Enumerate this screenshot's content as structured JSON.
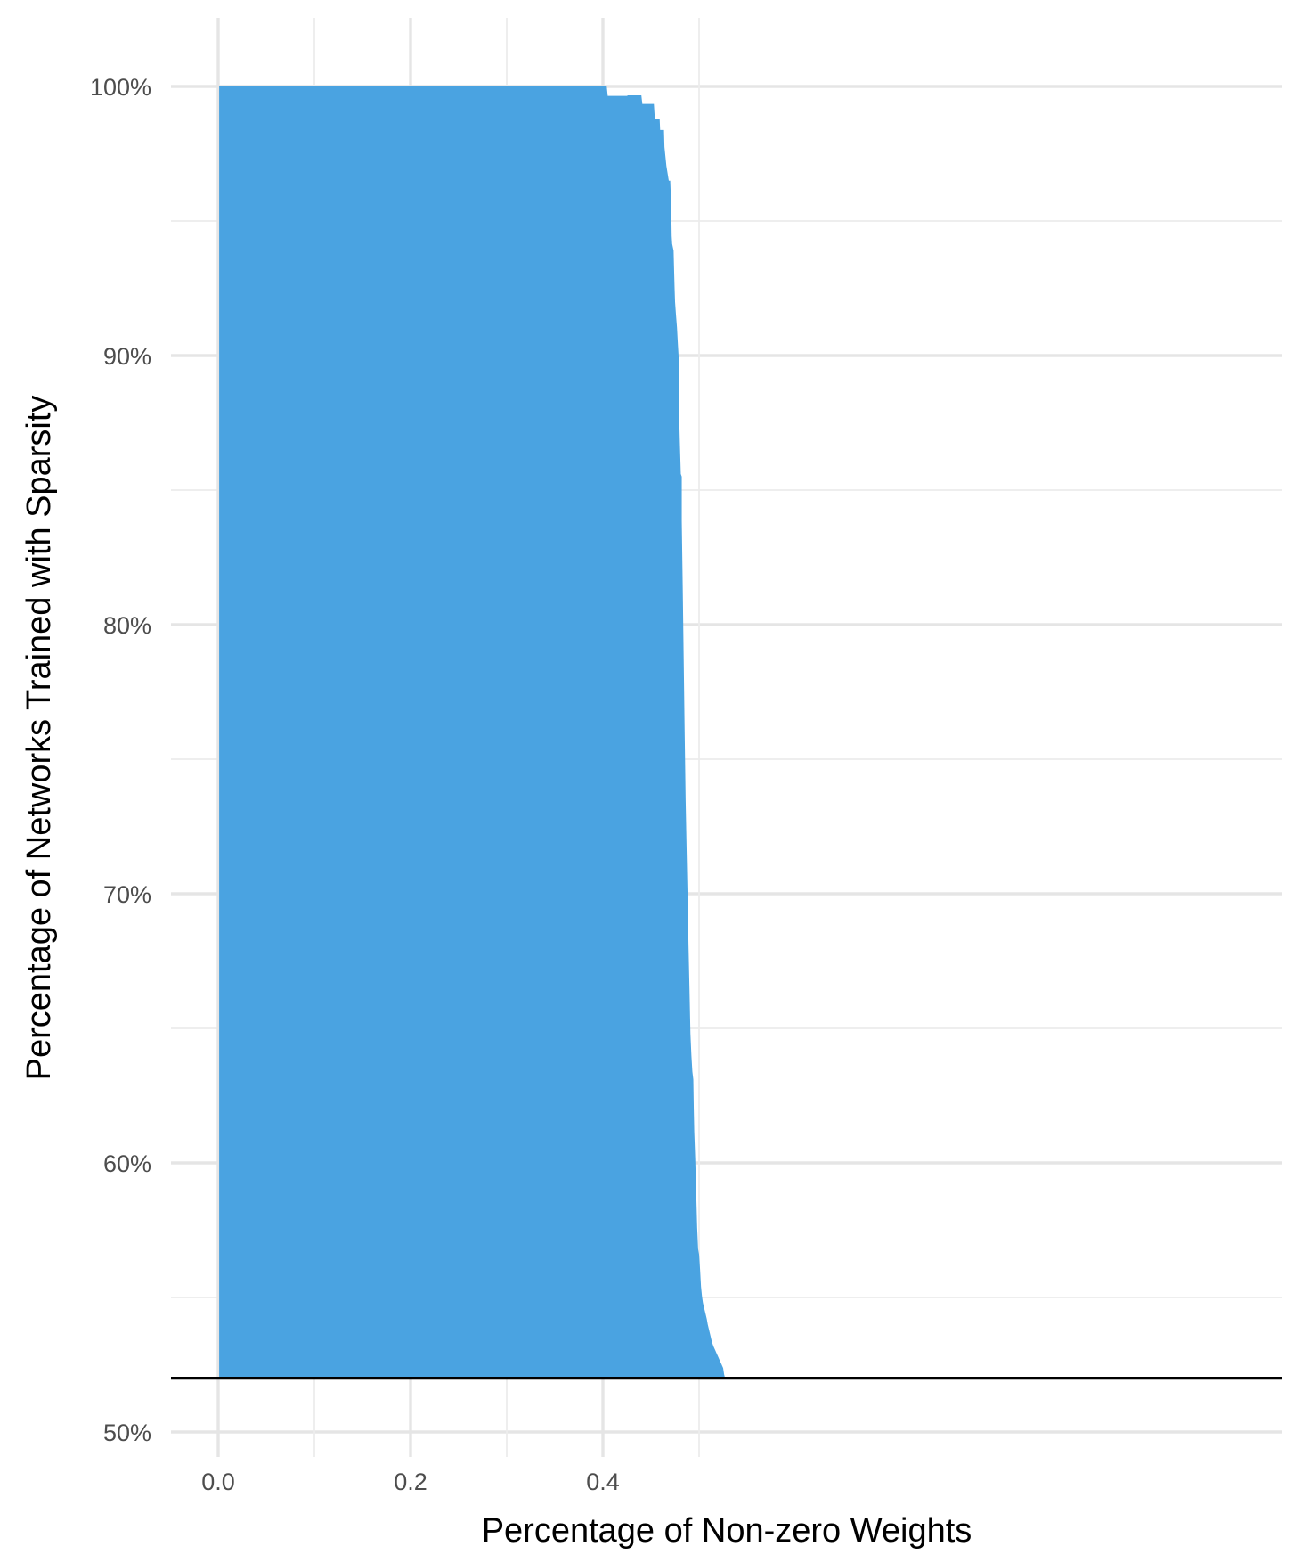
{
  "chart_data": {
    "type": "area",
    "xlabel": "Percentage of Non-zero Weights",
    "ylabel": "Percentage of Networks Trained with Sparsity",
    "xlim": [
      -0.025,
      0.555
    ],
    "ylim": [
      0.5,
      1.0
    ],
    "x_ticks": [
      0.0,
      0.1,
      0.2,
      0.3,
      0.4,
      0.5
    ],
    "x_tick_labels": [
      "0.0",
      "",
      "0.2",
      "",
      "0.4",
      ""
    ],
    "y_ticks": [
      0.5,
      0.6,
      0.7,
      0.8,
      0.9,
      1.0
    ],
    "y_tick_labels": [
      "50%",
      "60%",
      "70%",
      "80%",
      "90%",
      "100%"
    ],
    "fill_color": "#4aa3e1",
    "baseline": 0.52,
    "baseline_color": "#000000",
    "grid": true,
    "series": [
      {
        "x": [
          0.001,
          0.404,
          0.405,
          0.425,
          0.426,
          0.44,
          0.441,
          0.453,
          0.454,
          0.459,
          0.4595,
          0.4635,
          0.464,
          0.466,
          0.4685,
          0.47,
          0.471,
          0.4715,
          0.472,
          0.4735,
          0.474,
          0.4745,
          0.475,
          0.476,
          0.477,
          0.478,
          0.479,
          0.479,
          0.48,
          0.481,
          0.482,
          0.482,
          0.483,
          0.484,
          0.485,
          0.486,
          0.487,
          0.488,
          0.489,
          0.49,
          0.491,
          0.492,
          0.493,
          0.494,
          0.4945,
          0.495,
          0.496,
          0.497,
          0.498,
          0.499,
          0.5,
          0.501,
          0.502,
          0.503,
          0.504,
          0.505,
          0.506,
          0.507,
          0.508,
          0.509,
          0.51,
          0.511,
          0.512,
          0.513,
          0.514,
          0.515,
          0.516,
          0.517,
          0.518,
          0.519,
          0.52,
          0.521,
          0.522,
          0.523,
          0.524,
          0.525,
          0.526,
          0.527
        ],
        "y": [
          1.0,
          1.0,
          0.9965,
          0.9965,
          0.9967,
          0.9967,
          0.9935,
          0.9935,
          0.988,
          0.988,
          0.9838,
          0.9838,
          0.9775,
          0.9705,
          0.965,
          0.965,
          0.9555,
          0.9445,
          0.9415,
          0.939,
          0.932,
          0.9255,
          0.92,
          0.915,
          0.9105,
          0.904,
          0.898,
          0.8815,
          0.868,
          0.856,
          0.855,
          0.8385,
          0.814,
          0.787,
          0.76,
          0.735,
          0.717,
          0.7,
          0.681,
          0.665,
          0.648,
          0.64,
          0.634,
          0.631,
          0.62,
          0.6115,
          0.6015,
          0.589,
          0.576,
          0.568,
          0.566,
          0.5605,
          0.554,
          0.5505,
          0.548,
          0.5465,
          0.545,
          0.5435,
          0.542,
          0.54,
          0.5385,
          0.537,
          0.5355,
          0.534,
          0.5328,
          0.5318,
          0.531,
          0.5302,
          0.5294,
          0.5286,
          0.5278,
          0.527,
          0.5262,
          0.5254,
          0.5246,
          0.5238,
          0.5215,
          0.52
        ]
      }
    ]
  }
}
